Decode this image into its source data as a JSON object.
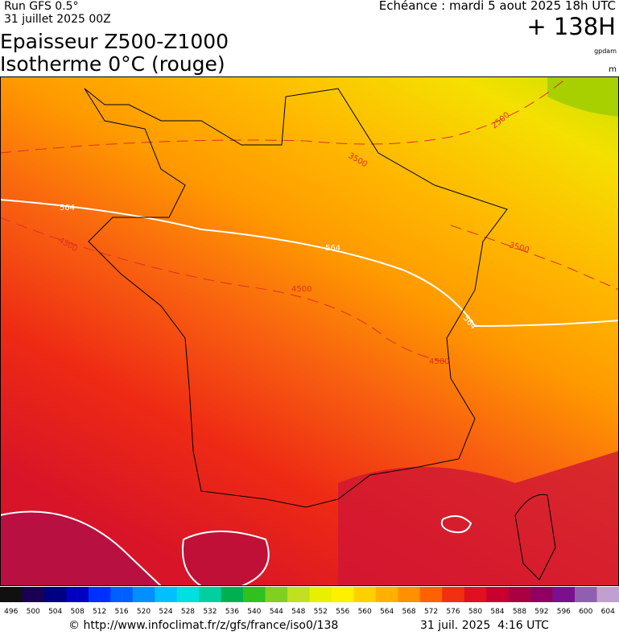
{
  "header": {
    "run": "Run GFS 0.5°",
    "date": "31 juillet 2025 00Z",
    "title_line1": "Epaisseur Z500-Z1000",
    "title_line2": "Isotherme 0°C (rouge)",
    "echeance": "Echéance : mardi 5 aout 2025 18h UTC",
    "lead": "+ 138H",
    "unit1": "gpdam",
    "unit2": "m"
  },
  "map": {
    "contour_labels": [
      "564",
      "564",
      "564",
      "4500",
      "4500",
      "3500",
      "3500",
      "2500",
      "4500"
    ]
  },
  "colorbar": {
    "ticks": [
      496,
      500,
      504,
      508,
      512,
      516,
      520,
      524,
      528,
      532,
      536,
      540,
      544,
      548,
      552,
      556,
      560,
      564,
      568,
      572,
      576,
      580,
      584,
      588,
      592,
      596,
      600,
      604
    ],
    "colors": [
      "#101010",
      "#1a0050",
      "#000080",
      "#0000c0",
      "#0030ff",
      "#0060ff",
      "#0090ff",
      "#00c0ff",
      "#00e0e0",
      "#00d0a0",
      "#00b050",
      "#30c020",
      "#80d020",
      "#c0e020",
      "#e8f000",
      "#fff000",
      "#ffd000",
      "#ffb000",
      "#ff9000",
      "#ff6000",
      "#f03010",
      "#e01020",
      "#c80030",
      "#a80040",
      "#900060",
      "#7a1090",
      "#9060b0",
      "#c0a0d0"
    ]
  },
  "footer": {
    "url": "© http://www.infoclimat.fr/z/gfs/france/iso0/138",
    "timestamp": "31 juil. 2025  4:16 UTC"
  }
}
